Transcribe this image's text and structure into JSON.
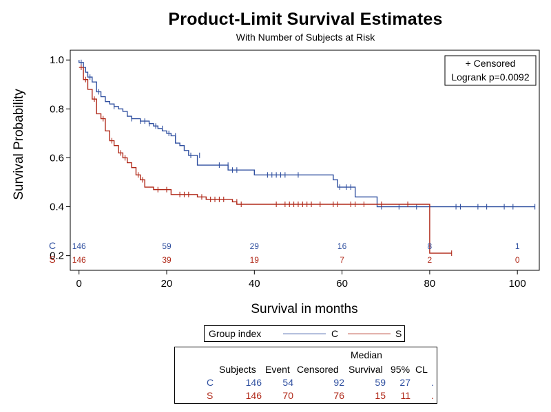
{
  "chart_data": {
    "type": "line",
    "title": "Product-Limit Survival Estimates",
    "subtitle": "With Number of Subjects at Risk",
    "xlabel": "Survival in months",
    "ylabel": "Survival Probability",
    "xlim": [
      -2,
      105
    ],
    "ylim": [
      0.14,
      1.04
    ],
    "x_ticks": [
      "0",
      "20",
      "40",
      "60",
      "80",
      "100"
    ],
    "x_tick_values": [
      0,
      20,
      40,
      60,
      80,
      100
    ],
    "y_ticks": [
      "0.2",
      "0.4",
      "0.6",
      "0.8",
      "1.0"
    ],
    "y_tick_values": [
      0.2,
      0.4,
      0.6,
      0.8,
      1.0
    ],
    "inset_legend": [
      "+ Censored",
      "Logrank p=0.0092"
    ],
    "series": [
      {
        "name": "C",
        "color": "#3050a0",
        "steps": [
          [
            0,
            1.0
          ],
          [
            0,
            0.99
          ],
          [
            1,
            0.97
          ],
          [
            1.5,
            0.95
          ],
          [
            2,
            0.93
          ],
          [
            3,
            0.91
          ],
          [
            4,
            0.87
          ],
          [
            5,
            0.85
          ],
          [
            6,
            0.83
          ],
          [
            7,
            0.82
          ],
          [
            8,
            0.81
          ],
          [
            9,
            0.8
          ],
          [
            10,
            0.79
          ],
          [
            11,
            0.77
          ],
          [
            12,
            0.76
          ],
          [
            14,
            0.75
          ],
          [
            16,
            0.74
          ],
          [
            17,
            0.73
          ],
          [
            18,
            0.72
          ],
          [
            19,
            0.71
          ],
          [
            20,
            0.7
          ],
          [
            21,
            0.69
          ],
          [
            22,
            0.66
          ],
          [
            23,
            0.65
          ],
          [
            24,
            0.63
          ],
          [
            25,
            0.61
          ],
          [
            27,
            0.57
          ],
          [
            34,
            0.55
          ],
          [
            40,
            0.53
          ],
          [
            58,
            0.51
          ],
          [
            59,
            0.48
          ],
          [
            63,
            0.44
          ],
          [
            68,
            0.4
          ],
          [
            104,
            0.4
          ]
        ],
        "censored": [
          [
            0.5,
            0.99
          ],
          [
            2.5,
            0.93
          ],
          [
            4.5,
            0.87
          ],
          [
            8,
            0.81
          ],
          [
            12,
            0.76
          ],
          [
            14,
            0.75
          ],
          [
            15,
            0.75
          ],
          [
            16,
            0.74
          ],
          [
            17.5,
            0.73
          ],
          [
            19,
            0.72
          ],
          [
            20.5,
            0.7
          ],
          [
            22,
            0.69
          ],
          [
            25.5,
            0.61
          ],
          [
            27.5,
            0.61
          ],
          [
            32,
            0.57
          ],
          [
            34,
            0.57
          ],
          [
            35,
            0.55
          ],
          [
            36,
            0.55
          ],
          [
            43,
            0.53
          ],
          [
            44,
            0.53
          ],
          [
            45,
            0.53
          ],
          [
            46,
            0.53
          ],
          [
            47,
            0.53
          ],
          [
            50,
            0.53
          ],
          [
            59.5,
            0.48
          ],
          [
            61,
            0.48
          ],
          [
            62,
            0.48
          ],
          [
            69,
            0.4
          ],
          [
            73,
            0.4
          ],
          [
            77,
            0.4
          ],
          [
            86,
            0.4
          ],
          [
            87,
            0.4
          ],
          [
            91,
            0.4
          ],
          [
            93,
            0.4
          ],
          [
            97,
            0.4
          ],
          [
            99,
            0.4
          ],
          [
            104,
            0.4
          ]
        ],
        "at_risk": [
          146,
          59,
          29,
          16,
          8,
          1
        ]
      },
      {
        "name": "S",
        "color": "#b02818",
        "steps": [
          [
            0,
            0.97
          ],
          [
            1,
            0.92
          ],
          [
            2,
            0.88
          ],
          [
            3,
            0.84
          ],
          [
            4,
            0.78
          ],
          [
            5,
            0.76
          ],
          [
            6,
            0.71
          ],
          [
            7,
            0.67
          ],
          [
            8,
            0.65
          ],
          [
            9,
            0.62
          ],
          [
            10,
            0.6
          ],
          [
            11,
            0.58
          ],
          [
            12,
            0.56
          ],
          [
            13,
            0.53
          ],
          [
            14,
            0.51
          ],
          [
            15,
            0.48
          ],
          [
            17,
            0.47
          ],
          [
            21,
            0.45
          ],
          [
            27,
            0.44
          ],
          [
            29,
            0.43
          ],
          [
            35,
            0.42
          ],
          [
            36,
            0.41
          ],
          [
            80,
            0.41
          ],
          [
            80,
            0.21
          ],
          [
            85,
            0.21
          ]
        ],
        "censored": [
          [
            0.5,
            0.97
          ],
          [
            1.5,
            0.92
          ],
          [
            3.5,
            0.84
          ],
          [
            5.5,
            0.76
          ],
          [
            7.5,
            0.67
          ],
          [
            9.5,
            0.62
          ],
          [
            10.5,
            0.6
          ],
          [
            13.5,
            0.53
          ],
          [
            14.5,
            0.51
          ],
          [
            18,
            0.47
          ],
          [
            20,
            0.47
          ],
          [
            23,
            0.45
          ],
          [
            24,
            0.45
          ],
          [
            25,
            0.45
          ],
          [
            28,
            0.44
          ],
          [
            30,
            0.43
          ],
          [
            31,
            0.43
          ],
          [
            32,
            0.43
          ],
          [
            33,
            0.43
          ],
          [
            36,
            0.42
          ],
          [
            37,
            0.41
          ],
          [
            45,
            0.41
          ],
          [
            47,
            0.41
          ],
          [
            48,
            0.41
          ],
          [
            49,
            0.41
          ],
          [
            50,
            0.41
          ],
          [
            51,
            0.41
          ],
          [
            52,
            0.41
          ],
          [
            53,
            0.41
          ],
          [
            55,
            0.41
          ],
          [
            58,
            0.41
          ],
          [
            59,
            0.41
          ],
          [
            62,
            0.41
          ],
          [
            63,
            0.41
          ],
          [
            65,
            0.41
          ],
          [
            69,
            0.41
          ],
          [
            75,
            0.41
          ],
          [
            85,
            0.21
          ]
        ],
        "at_risk": [
          146,
          39,
          19,
          7,
          2,
          0
        ]
      }
    ]
  },
  "legend": {
    "title": "Group index",
    "items": [
      "C",
      "S"
    ]
  },
  "stats_table": {
    "header_top": "Median",
    "headers": [
      "Subjects",
      "Event",
      "Censored",
      "Survival",
      "95%",
      "CL"
    ],
    "rows": [
      {
        "group": "C",
        "subjects": "146",
        "event": "54",
        "censored": "92",
        "median": "59",
        "lower": "27",
        "upper": "."
      },
      {
        "group": "S",
        "subjects": "146",
        "event": "70",
        "censored": "76",
        "median": "15",
        "lower": "11",
        "upper": "."
      }
    ]
  }
}
